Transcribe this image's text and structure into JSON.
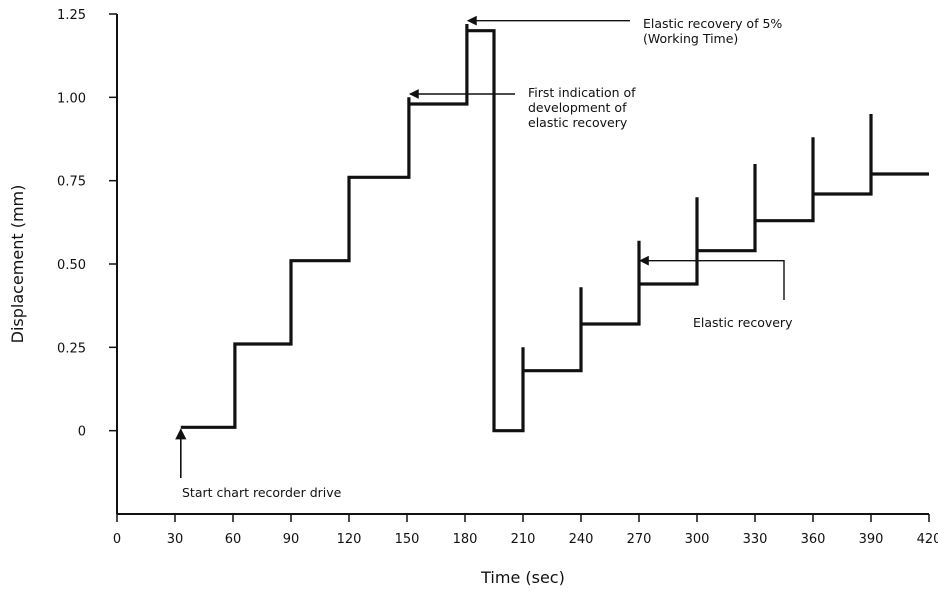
{
  "chart_data": {
    "type": "line",
    "title": "",
    "xlabel": "Time (sec)",
    "ylabel": "Displacement (mm)",
    "xlim": [
      0,
      420
    ],
    "ylim": [
      -0.25,
      1.25
    ],
    "x_ticks": [
      0,
      30,
      60,
      90,
      120,
      150,
      180,
      210,
      240,
      270,
      300,
      330,
      360,
      390,
      420
    ],
    "x_tick_labels": [
      "0",
      "30",
      "60",
      "90",
      "120",
      "150",
      "180",
      "210",
      "240",
      "270",
      "300",
      "330",
      "360",
      "390",
      "420"
    ],
    "y_ticks": [
      0,
      0.25,
      0.5,
      0.75,
      1.0,
      1.25
    ],
    "y_tick_labels": [
      "0",
      "0.25",
      "0.50",
      "0.75",
      "1.00",
      "1.25"
    ],
    "grid": false,
    "legend": "none",
    "series": [
      {
        "color": "#111111",
        "points": [
          [
            33,
            0.01
          ],
          [
            61,
            0.01
          ],
          [
            61,
            0.26
          ],
          [
            90,
            0.26
          ],
          [
            90,
            0.51
          ],
          [
            120,
            0.51
          ],
          [
            120,
            0.76
          ],
          [
            151,
            0.76
          ],
          [
            151,
            1.0
          ],
          [
            151,
            0.98
          ],
          [
            181,
            0.98
          ],
          [
            181,
            1.22
          ],
          [
            181,
            1.2
          ],
          [
            195,
            1.2
          ],
          [
            195,
            0.0
          ],
          [
            210,
            0.0
          ],
          [
            210,
            0.25
          ],
          [
            210,
            0.18
          ],
          [
            240,
            0.18
          ],
          [
            240,
            0.43
          ],
          [
            240,
            0.32
          ],
          [
            270,
            0.32
          ],
          [
            270,
            0.57
          ],
          [
            270,
            0.44
          ],
          [
            300,
            0.44
          ],
          [
            300,
            0.7
          ],
          [
            300,
            0.54
          ],
          [
            330,
            0.54
          ],
          [
            330,
            0.8
          ],
          [
            330,
            0.63
          ],
          [
            360,
            0.63
          ],
          [
            360,
            0.88
          ],
          [
            360,
            0.71
          ],
          [
            390,
            0.71
          ],
          [
            390,
            0.95
          ],
          [
            390,
            0.77
          ],
          [
            420,
            0.77
          ]
        ]
      }
    ],
    "annotations": [
      {
        "id": "start",
        "text_lines": [
          "Start chart recorder drive"
        ],
        "pointer": "up-arrow",
        "target": [
          33,
          0.01
        ]
      },
      {
        "id": "elastic5",
        "text_lines": [
          "Elastic recovery of 5%",
          "(Working Time)"
        ],
        "pointer": "left-arrow",
        "target": [
          181,
          1.23
        ]
      },
      {
        "id": "first",
        "text_lines": [
          "First indication of",
          "development of",
          "elastic recovery"
        ],
        "pointer": "left-arrow",
        "target": [
          151,
          1.01
        ]
      },
      {
        "id": "elastic",
        "text_lines": [
          "Elastic recovery"
        ],
        "pointer": "left-arrow",
        "target": [
          270,
          0.51
        ]
      }
    ]
  }
}
